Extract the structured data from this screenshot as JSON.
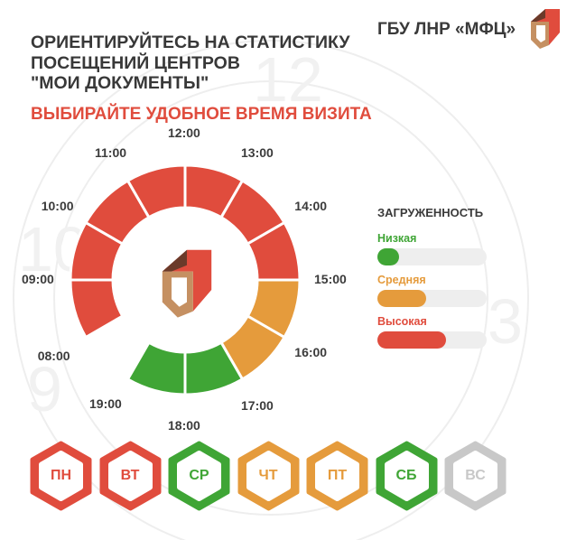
{
  "header": {
    "org_name": "ГБУ ЛНР «МФЦ»",
    "headline": [
      "ОРИЕНТИРУЙТЕСЬ НА СТАТИСТИКУ",
      "ПОСЕЩЕНИЙ ЦЕНТРОВ",
      "\"МОИ ДОКУМЕНТЫ\""
    ],
    "subheadline": "ВЫБИРАЙТЕ УДОБНОЕ ВРЕМЯ ВИЗИТА"
  },
  "colors": {
    "high": "#e04c3d",
    "medium": "#e59b3c",
    "low": "#3fa535",
    "inactive": "#c8c8c8",
    "text": "#3b3b3b"
  },
  "dial": {
    "hours": [
      {
        "label": "08:00",
        "load": "high"
      },
      {
        "label": "09:00",
        "load": "high"
      },
      {
        "label": "10:00",
        "load": "high"
      },
      {
        "label": "11:00",
        "load": "high"
      },
      {
        "label": "12:00",
        "load": "high"
      },
      {
        "label": "13:00",
        "load": "high"
      },
      {
        "label": "14:00",
        "load": "high"
      },
      {
        "label": "15:00",
        "load": "medium"
      },
      {
        "label": "16:00",
        "load": "medium"
      },
      {
        "label": "17:00",
        "load": "low"
      },
      {
        "label": "18:00",
        "load": "low"
      },
      {
        "label": "19:00",
        "load": null
      }
    ]
  },
  "legend": {
    "title": "ЗАГРУЖЕННОСТЬ",
    "items": [
      {
        "label": "Низкая",
        "level": "low",
        "fill_fraction": 0.2
      },
      {
        "label": "Средняя",
        "level": "medium",
        "fill_fraction": 0.45
      },
      {
        "label": "Высокая",
        "level": "high",
        "fill_fraction": 0.63
      }
    ]
  },
  "days": [
    {
      "label": "ПН",
      "load": "high"
    },
    {
      "label": "ВТ",
      "load": "high"
    },
    {
      "label": "СР",
      "load": "low"
    },
    {
      "label": "ЧТ",
      "load": "medium"
    },
    {
      "label": "ПТ",
      "load": "medium"
    },
    {
      "label": "СБ",
      "load": "low"
    },
    {
      "label": "ВС",
      "load": "inactive"
    }
  ]
}
